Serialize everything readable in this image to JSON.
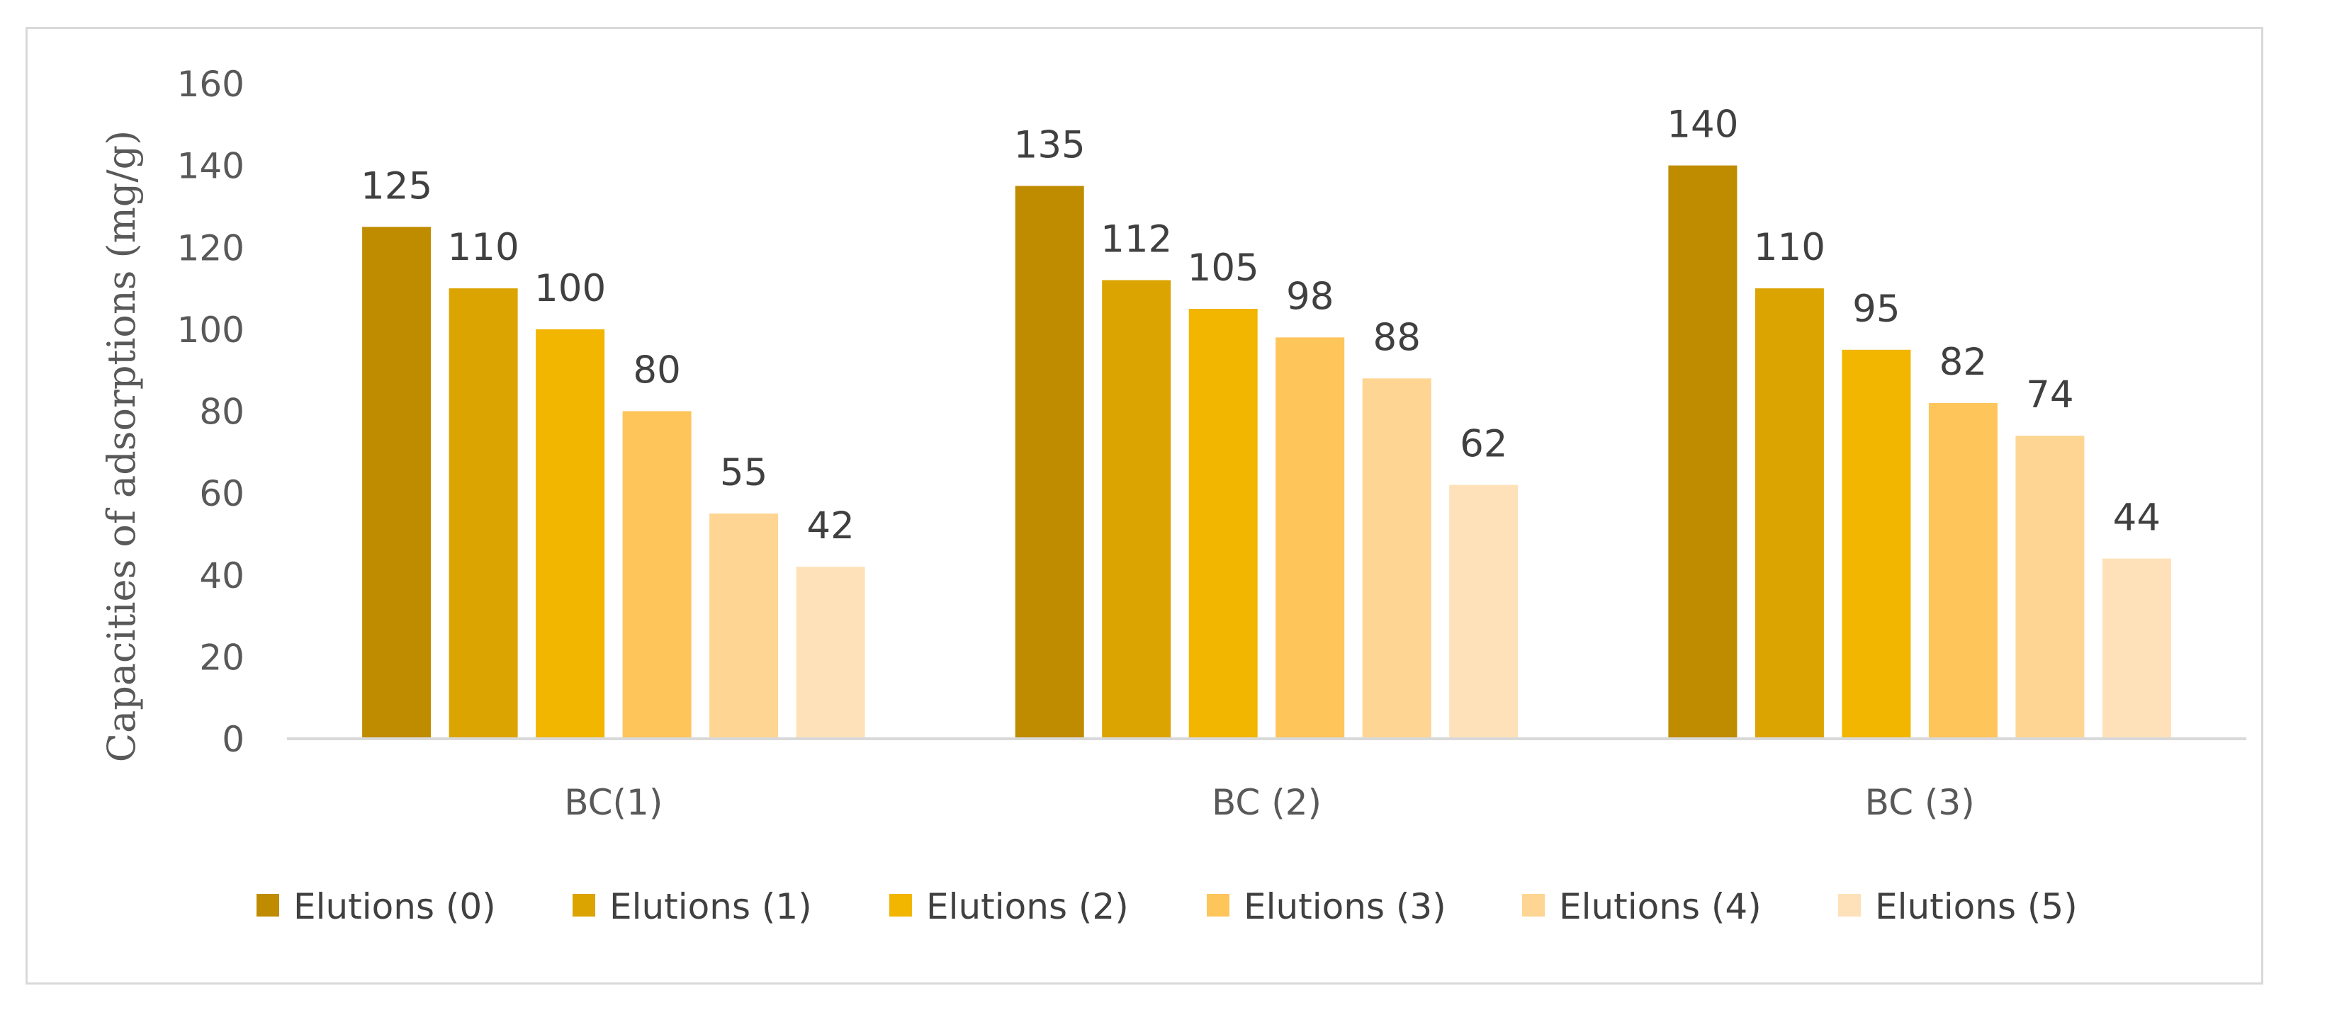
{
  "chart_data": {
    "type": "bar",
    "title": "",
    "xlabel": "",
    "ylabel": "Capacities  of  adsorptions  (mg/g)",
    "ylim": [
      0,
      160
    ],
    "yticks": [
      0,
      20,
      40,
      60,
      80,
      100,
      120,
      140,
      160
    ],
    "grid": false,
    "legend_position": "bottom",
    "categories": [
      "BC(1)",
      "BC (2)",
      "BC (3)"
    ],
    "series": [
      {
        "name": "Elutions (0)",
        "values": [
          125,
          135,
          140
        ],
        "color": "#bf8c00"
      },
      {
        "name": "Elutions (1)",
        "values": [
          110,
          112,
          110
        ],
        "color": "#dba400"
      },
      {
        "name": "Elutions (2)",
        "values": [
          100,
          105,
          95
        ],
        "color": "#f2b500"
      },
      {
        "name": "Elutions (3)",
        "values": [
          80,
          98,
          82
        ],
        "color": "#fdc55a"
      },
      {
        "name": "Elutions (4)",
        "values": [
          55,
          88,
          74
        ],
        "color": "#fed592"
      },
      {
        "name": "Elutions (5)",
        "values": [
          42,
          62,
          44
        ],
        "color": "#fee1b9"
      }
    ]
  }
}
